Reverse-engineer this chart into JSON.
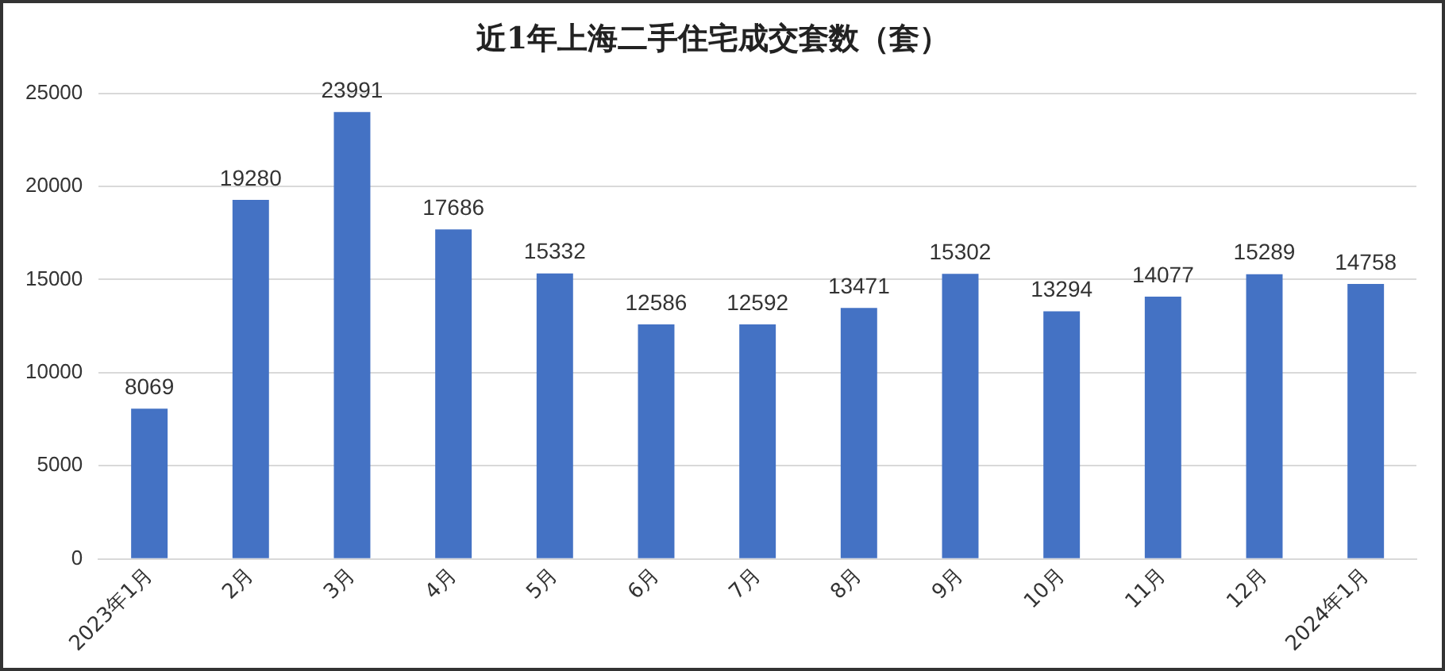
{
  "chart_data": {
    "type": "bar",
    "title": "近1年上海二手住宅成交套数（套）",
    "categories": [
      "2023年1月",
      "2月",
      "3月",
      "4月",
      "5月",
      "6月",
      "7月",
      "8月",
      "9月",
      "10月",
      "11月",
      "12月",
      "2024年1月"
    ],
    "series": [
      {
        "color": "#4472c4",
        "values": [
          8069,
          19280,
          23991,
          17686,
          15332,
          12586,
          12592,
          13471,
          15302,
          13294,
          14077,
          15289,
          14758
        ]
      }
    ],
    "ylim": [
      0,
      25000
    ],
    "yticks": [
      0,
      5000,
      10000,
      15000,
      20000,
      25000
    ],
    "grid": "y",
    "data_labels": true,
    "legend": false
  }
}
